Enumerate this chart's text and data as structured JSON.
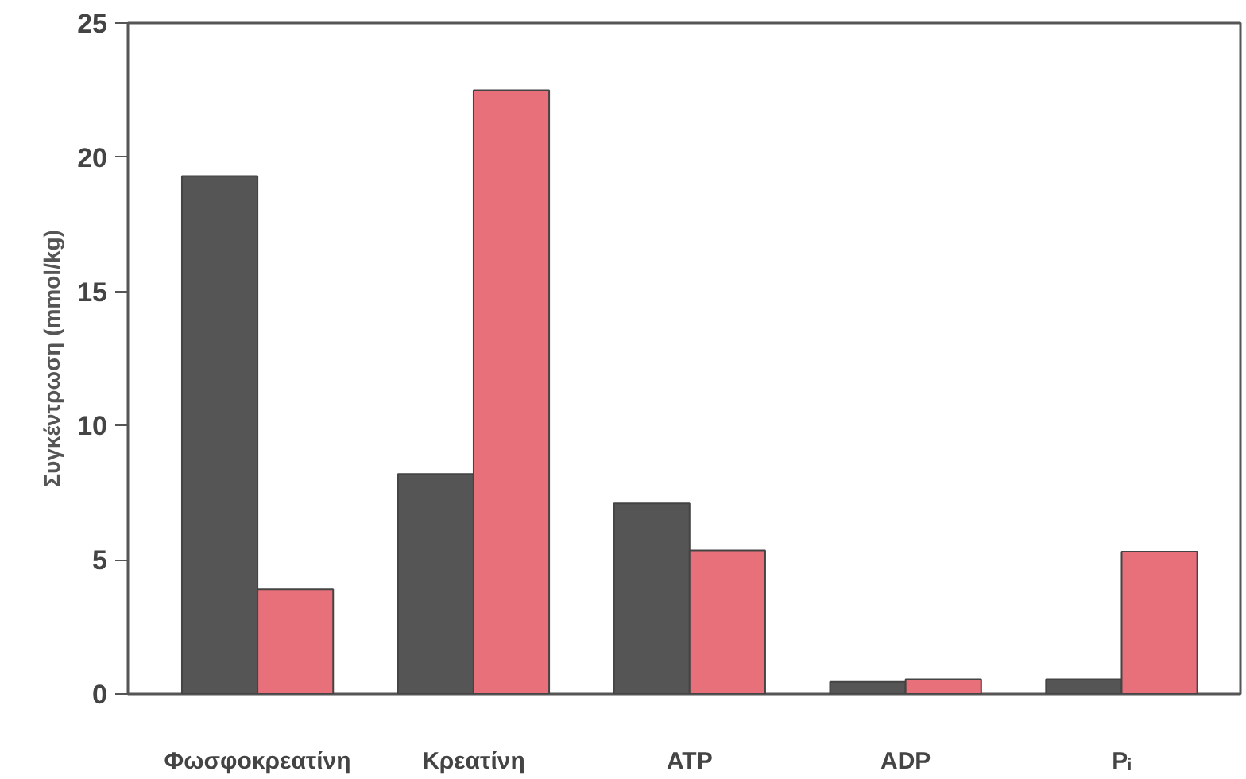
{
  "chart_data": {
    "type": "bar",
    "ylabel": "Συγκέντρωση (mmol/kg)",
    "categories": [
      "Φωσφοκρεατίνη",
      "Κρεατίνη",
      "ATP",
      "ADP",
      "Pᵢ"
    ],
    "series": [
      {
        "color": "#555555",
        "values": [
          19.3,
          8.2,
          7.1,
          0.45,
          0.55
        ]
      },
      {
        "color": "#e8707a",
        "values": [
          3.9,
          22.5,
          5.35,
          0.55,
          5.3
        ]
      }
    ],
    "ylim": [
      0,
      25
    ],
    "yticks": [
      0,
      5,
      10,
      15,
      20,
      25
    ],
    "grid": false
  }
}
